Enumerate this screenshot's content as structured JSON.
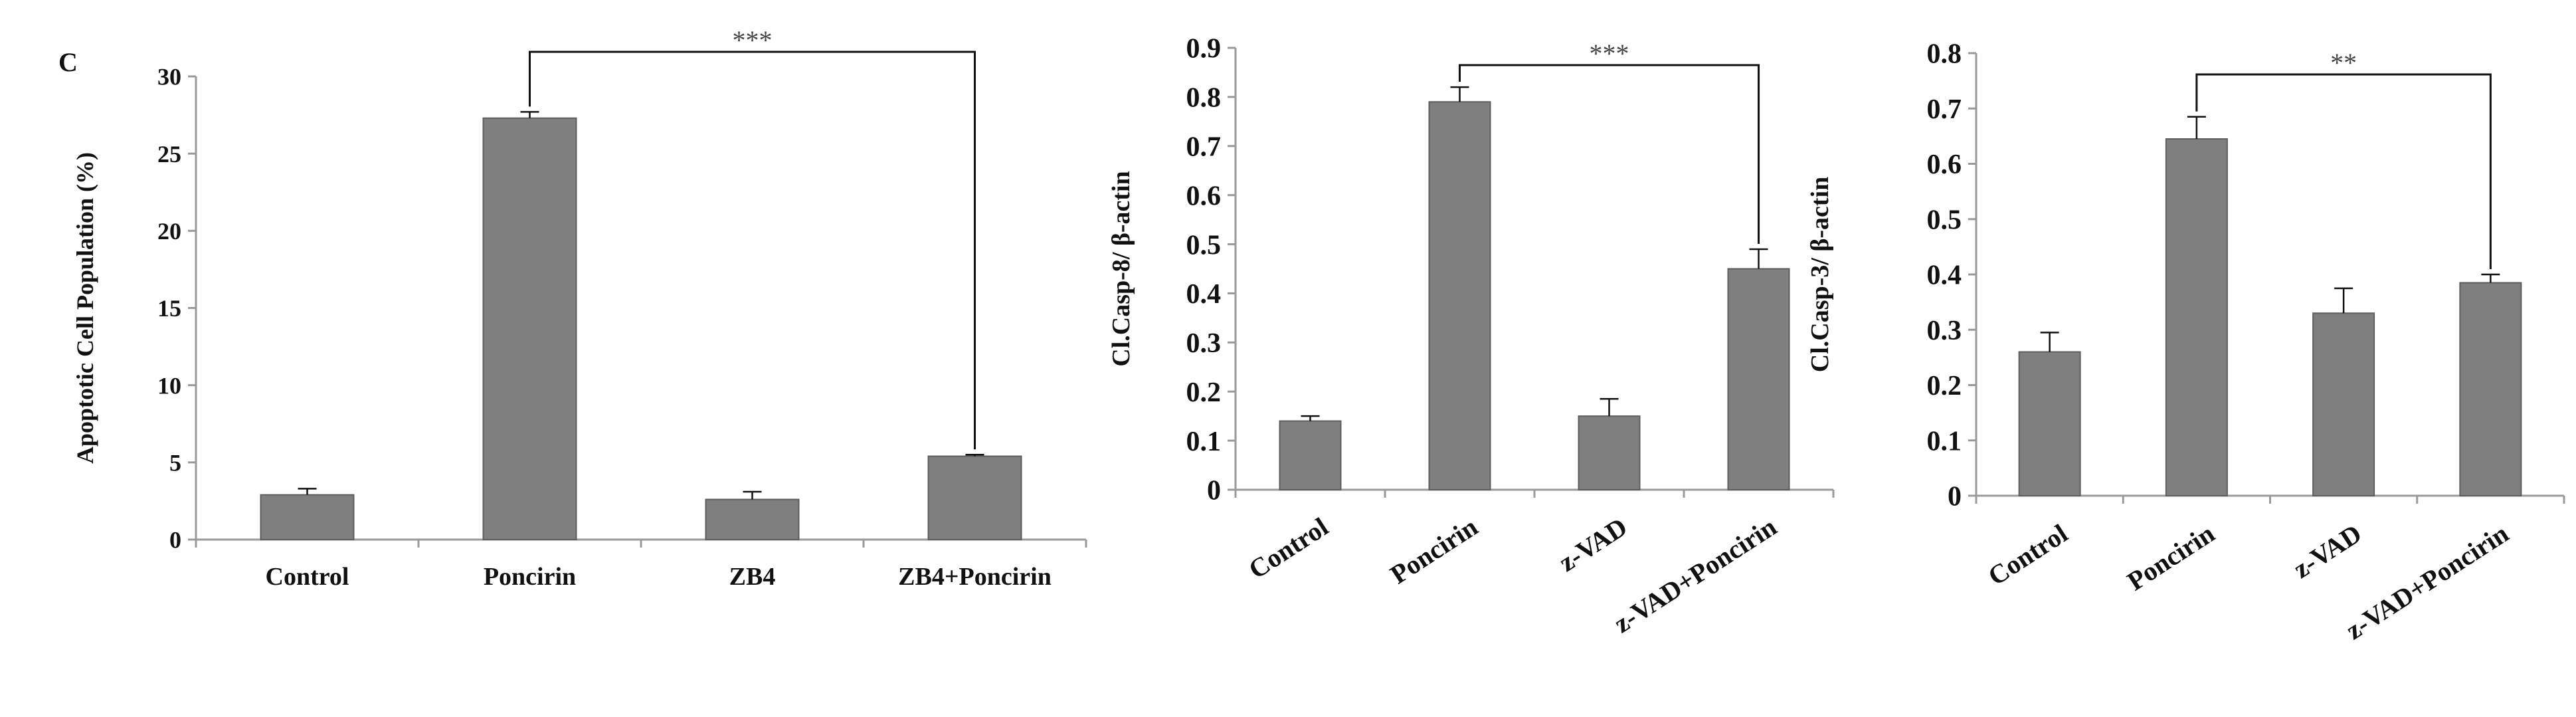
{
  "figure": {
    "panel_label": "C"
  },
  "colors": {
    "bar": "#7f7f7f",
    "bar_edge": "#5e5e5e",
    "axis": "#9a9a9a",
    "text": "#111111",
    "sig": "#111111"
  },
  "chart_data": [
    {
      "type": "bar",
      "categories": [
        "Control",
        "Poncirin",
        "ZB4",
        "ZB4+Poncirin"
      ],
      "values": [
        2.9,
        27.3,
        2.6,
        5.4
      ],
      "errors": [
        0.4,
        0.4,
        0.5,
        0.1
      ],
      "ylabel": "Apoptotic Cell Population (%)",
      "ylim": [
        0,
        30
      ],
      "yticks": [
        "0",
        "5",
        "10",
        "15",
        "20",
        "25",
        "30"
      ],
      "xlabel_rotation": 0,
      "grid": false,
      "significance": {
        "from": 1,
        "to": 3,
        "label": "***"
      }
    },
    {
      "type": "bar",
      "categories": [
        "Control",
        "Poncirin",
        "z-VAD",
        "z-VAD+Poncirin"
      ],
      "values": [
        0.14,
        0.79,
        0.15,
        0.45
      ],
      "errors": [
        0.01,
        0.03,
        0.035,
        0.04
      ],
      "ylabel": "Cl.Casp-8/ β-actin",
      "ylim": [
        0,
        0.9
      ],
      "yticks": [
        "0",
        "0.1",
        "0.2",
        "0.3",
        "0.4",
        "0.5",
        "0.6",
        "0.7",
        "0.8",
        "0.9"
      ],
      "xlabel_rotation": -33,
      "grid": false,
      "significance": {
        "from": 1,
        "to": 3,
        "label": "***"
      }
    },
    {
      "type": "bar",
      "categories": [
        "Control",
        "Poncirin",
        "z-VAD",
        "z-VAD+Poncirin"
      ],
      "values": [
        0.26,
        0.645,
        0.33,
        0.385
      ],
      "errors": [
        0.035,
        0.04,
        0.045,
        0.015
      ],
      "ylabel": "Cl.Casp-3/ β-actin",
      "ylim": [
        0,
        0.8
      ],
      "yticks": [
        "0",
        "0.1",
        "0.2",
        "0.3",
        "0.4",
        "0.5",
        "0.6",
        "0.7",
        "0.8"
      ],
      "xlabel_rotation": -33,
      "grid": false,
      "significance": {
        "from": 1,
        "to": 3,
        "label": "**"
      }
    }
  ]
}
